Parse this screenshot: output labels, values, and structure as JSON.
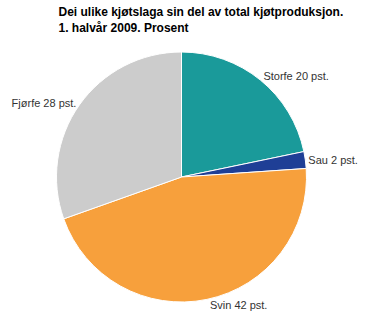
{
  "chart_data": {
    "type": "pie",
    "title": "Dei ulike kjøtslaga sin del av total kjøtproduksjon.",
    "subtitle": "1. halvår 2009. Prosent",
    "categories": [
      "Storfe",
      "Sau",
      "Svin",
      "Fjørfe"
    ],
    "values": [
      20,
      2,
      42,
      28
    ],
    "value_labels": [
      "Storfe 20 pst.",
      "Sau 2 pst.",
      "Svin 42 pst.",
      "Fjørfe 28 pst."
    ],
    "colors": [
      "#1a9a9a",
      "#1f3f96",
      "#f7a03c",
      "#cccccc"
    ],
    "data_labels": true
  }
}
